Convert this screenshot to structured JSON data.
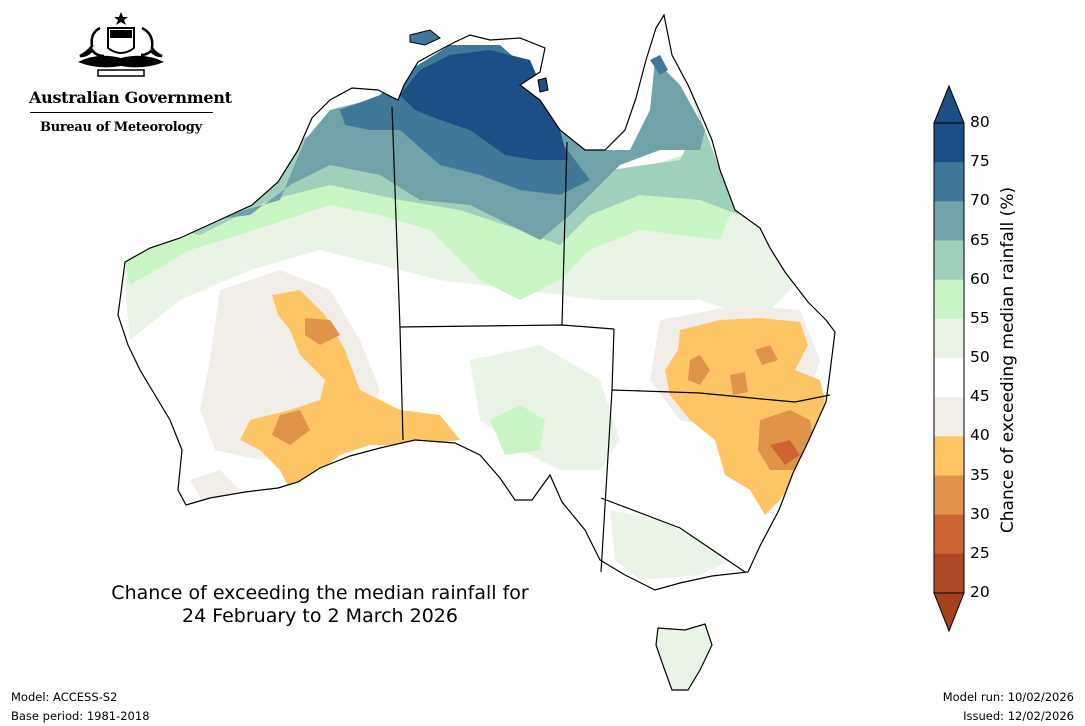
{
  "branding": {
    "government": "Australian Government",
    "bureau": "Bureau of Meteorology"
  },
  "title": {
    "line1": "Chance of exceeding the median rainfall for",
    "line2": "24 February to 2 March 2026"
  },
  "footer": {
    "model": "Model: ACCESS-S2",
    "base_period": "Base period: 1981-2018",
    "model_run": "Model run: 10/02/2026",
    "issued": "Issued: 12/02/2026"
  },
  "legend": {
    "label": "Chance of exceeding median rainfall (%)",
    "ticks": [
      "80",
      "75",
      "70",
      "65",
      "60",
      "55",
      "50",
      "45",
      "40",
      "35",
      "30",
      "25",
      "20"
    ],
    "bands": [
      {
        "range": "75-80",
        "color": "#1b4f86"
      },
      {
        "range": "70-75",
        "color": "#3f7899"
      },
      {
        "range": "65-70",
        "color": "#6fa3a8"
      },
      {
        "range": "60-65",
        "color": "#9fd0bb"
      },
      {
        "range": "55-60",
        "color": "#c9f5c4"
      },
      {
        "range": "50-55",
        "color": "#e9f4e6"
      },
      {
        "range": "45-50",
        "color": "#ffffff"
      },
      {
        "range": "40-45",
        "color": "#f1ede8"
      },
      {
        "range": "35-40",
        "color": "#fdc564"
      },
      {
        "range": "30-35",
        "color": "#e0944a"
      },
      {
        "range": "25-30",
        "color": "#cd6434"
      },
      {
        "range": "20-25",
        "color": "#ad4725"
      }
    ],
    "over_color": "#1b4f86",
    "under_color": "#a4411f"
  },
  "map": {
    "region": "Australia",
    "colors": {
      "coast": "#000000",
      "p80": "#1b4f86",
      "p75": "#3f7899",
      "p70": "#6fa3a8",
      "p65": "#9fd0bb",
      "p60": "#c9f5c4",
      "p55": "#e9f4e6",
      "p45": "#f1ede8",
      "p40": "#fdc564",
      "p35": "#e0944a",
      "p30": "#cd6434"
    }
  }
}
